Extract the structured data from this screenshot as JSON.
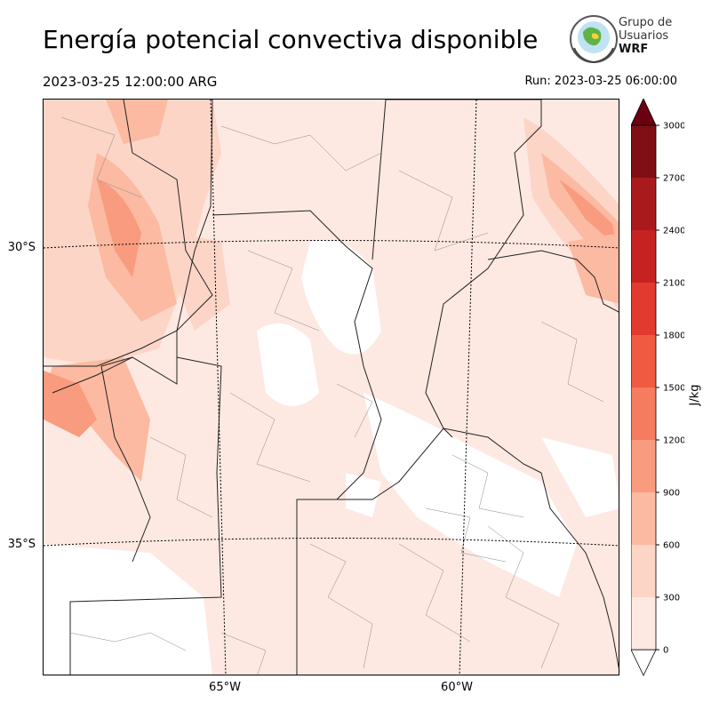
{
  "title": "Energía potencial convectiva disponible",
  "valid_time": "2023-03-25 12:00:00 ARG",
  "run_time": "Run: 2023-03-25 06:00:00",
  "logo": {
    "line1": "Grupo de",
    "line2": "Usuarios",
    "line3": "WRF"
  },
  "map": {
    "lat_labels": [
      "30°S",
      "35°S"
    ],
    "lon_labels": [
      "65°W",
      "60°W"
    ],
    "field": "CAPE",
    "region": "Centro de Argentina"
  },
  "colorbar": {
    "label": "J/kg",
    "ticks": [
      "0",
      "300",
      "600",
      "900",
      "1200",
      "1500",
      "1800",
      "2100",
      "2400",
      "2700",
      "3000"
    ],
    "colors": [
      "#fde9e2",
      "#fcd5c7",
      "#fbbaa1",
      "#f99b7e",
      "#f57c5f",
      "#f05a40",
      "#e23a2e",
      "#c62222",
      "#a91a1c",
      "#800e15"
    ],
    "over_color": "#6b0010",
    "under_color": "#ffffff"
  }
}
